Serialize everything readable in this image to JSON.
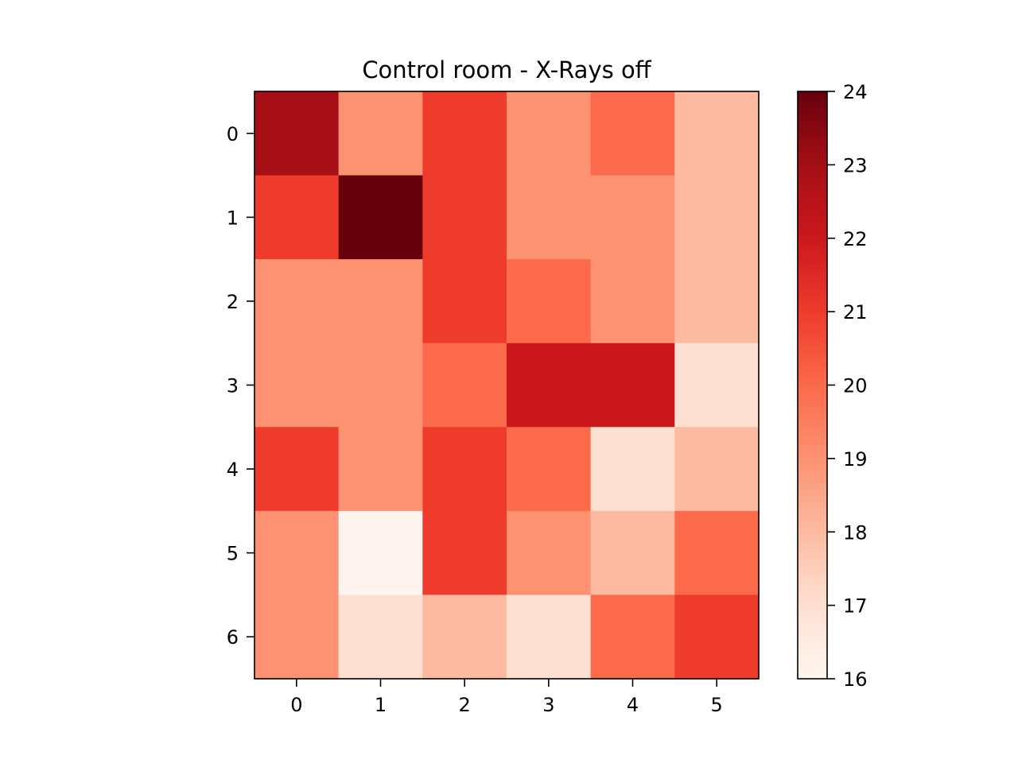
{
  "chart_data": {
    "type": "heatmap",
    "title": "Control room - X-Rays off",
    "xlabel": "",
    "ylabel": "",
    "x_categories": [
      "0",
      "1",
      "2",
      "3",
      "4",
      "5"
    ],
    "y_categories": [
      "0",
      "1",
      "2",
      "3",
      "4",
      "5",
      "6"
    ],
    "values": [
      [
        23.0,
        19.0,
        21.0,
        19.0,
        20.0,
        18.0
      ],
      [
        21.0,
        24.0,
        21.0,
        19.0,
        19.0,
        18.0
      ],
      [
        19.0,
        19.0,
        21.0,
        20.0,
        19.0,
        18.0
      ],
      [
        19.0,
        19.0,
        20.0,
        22.0,
        22.0,
        17.0
      ],
      [
        21.0,
        19.0,
        21.0,
        20.0,
        17.0,
        18.0
      ],
      [
        19.0,
        16.0,
        21.0,
        19.0,
        18.0,
        20.0
      ],
      [
        19.0,
        17.0,
        18.0,
        17.0,
        20.0,
        21.0
      ]
    ],
    "colormap": "Reds",
    "colorbar": {
      "vmin": 16,
      "vmax": 24,
      "ticks": [
        "16",
        "17",
        "18",
        "19",
        "20",
        "21",
        "22",
        "23",
        "24"
      ]
    },
    "grid": false,
    "legend": "none"
  }
}
